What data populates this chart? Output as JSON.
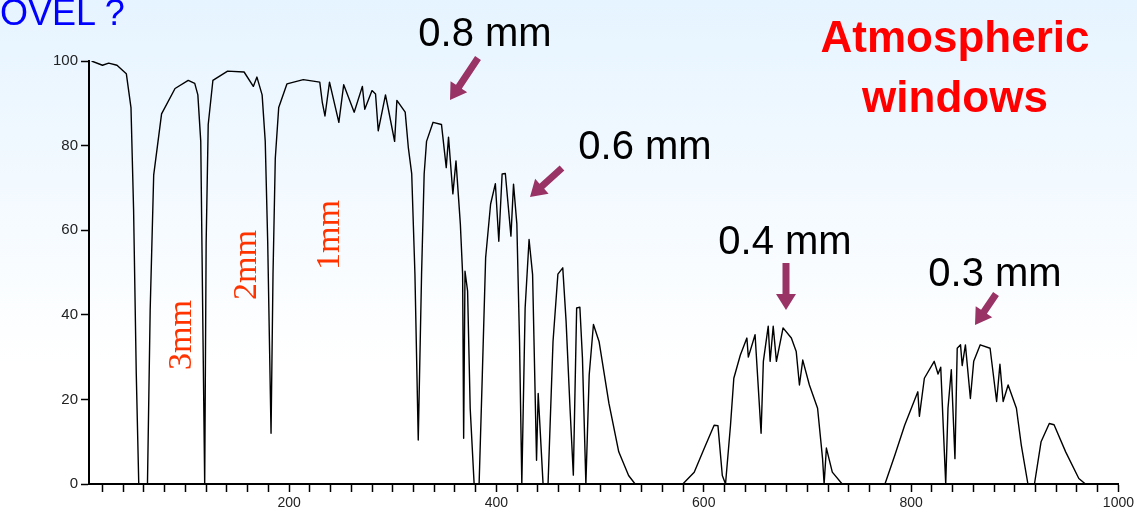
{
  "chart_data": {
    "type": "line",
    "title": "Atmospheric windows",
    "color": "#000000",
    "x": [
      9.5,
      20,
      26,
      34,
      43,
      47.5,
      50,
      52.6,
      55,
      63.4,
      66,
      69.4,
      77,
      90,
      102.7,
      109,
      112,
      114.8,
      117,
      118.6,
      120,
      122,
      126.5,
      140.7,
      156.6,
      165.5,
      169,
      174,
      177,
      179.4,
      182.6,
      184.5,
      186.7,
      190,
      198,
      213.7,
      229.6,
      232,
      234.6,
      239,
      248,
      252.7,
      262.8,
      270.7,
      273,
      280,
      283.4,
      286,
      293,
      296,
      301.8,
      304,
      312,
      315,
      318.3,
      321.4,
      324.6,
      327.8,
      330.3,
      332.6,
      338.9,
      347,
      351.6,
      353.8,
      358,
      361,
      365.2,
      367.4,
      368.4,
      369.7,
      372.2,
      374.7,
      378.5,
      383.3,
      386.4,
      389.6,
      394.4,
      399,
      402.3,
      405.5,
      408.6,
      414,
      416.5,
      419.7,
      422.3,
      424.5,
      427.7,
      431.5,
      434.9,
      438.7,
      440.3,
      445,
      449.8,
      454.6,
      459.3,
      464,
      467.2,
      471,
      474.2,
      477.4,
      480.5,
      483,
      486.3,
      489.5,
      493.6,
      499,
      508.5,
      518,
      527.5,
      533.8,
      579.8,
      590.8,
      600.4,
      610,
      613.7,
      617.9,
      621,
      625.8,
      629,
      635.3,
      641.6,
      643,
      649.5,
      655.3,
      657.5,
      662.2,
      664,
      667,
      670.1,
      676.5,
      684.5,
      689.2,
      692.3,
      695.5,
      701.9,
      709.8,
      714.6,
      716.1,
      718.3,
      724,
      733.5,
      774.8,
      784.3,
      793.8,
      806.5,
      808,
      812.8,
      822.3,
      826,
      828.6,
      833.4,
      835.6,
      838.8,
      842.3,
      844.5,
      847.7,
      849.3,
      852.4,
      857.2,
      860.4,
      866.7,
      876.2,
      882.5,
      885.7,
      888.8,
      893.6,
      901.6,
      906.3,
      912.7,
      919,
      925.4,
      933.3,
      937.9,
      949.1,
      961.8,
      968.2,
      999.5
    ],
    "values": [
      100,
      99,
      99.5,
      99,
      97,
      89,
      65,
      26,
      0,
      0,
      41,
      73,
      87.5,
      93.5,
      95.4,
      94.7,
      92,
      81,
      34,
      0,
      57,
      85,
      95.4,
      97.6,
      97.4,
      94,
      96.2,
      92,
      81,
      57,
      12,
      49.6,
      77,
      89,
      94.6,
      95.6,
      95,
      90.3,
      87,
      95,
      85.5,
      94.4,
      87.9,
      94,
      88.6,
      93,
      92.2,
      83.5,
      92,
      88.3,
      81,
      90.7,
      87.9,
      79.6,
      73.3,
      49.6,
      10.4,
      49.6,
      73.3,
      81,
      85.5,
      85,
      74.8,
      82,
      68.6,
      76.4,
      61.5,
      49.6,
      10.8,
      50.3,
      45.6,
      17.9,
      0,
      0,
      25.8,
      53.5,
      66.2,
      71,
      57.4,
      73.3,
      73.4,
      58.6,
      70.9,
      61.5,
      33.7,
      0,
      41.6,
      57.8,
      49.5,
      5.6,
      21.4,
      0,
      0,
      33.7,
      49.6,
      51.1,
      38.5,
      17.9,
      2.1,
      41.6,
      41.8,
      29.7,
      0,
      25.8,
      37.7,
      33.7,
      19.1,
      7.6,
      2,
      0,
      0,
      2.8,
      8.4,
      13.9,
      13.8,
      2,
      0,
      13.9,
      25,
      30.5,
      34.5,
      30,
      35.3,
      12,
      29,
      37.3,
      29,
      37.3,
      29,
      36.9,
      34.5,
      31.3,
      23.4,
      29.3,
      23.4,
      17.9,
      6,
      0,
      8.5,
      2.8,
      0,
      0,
      6.8,
      13.9,
      21.8,
      16,
      25,
      29,
      26,
      27.6,
      0,
      17.9,
      27,
      6,
      32.1,
      32.9,
      28,
      32.9,
      20.2,
      29,
      32.9,
      32.1,
      19.5,
      28.3,
      19.5,
      23.4,
      17.9,
      9.2,
      0,
      0,
      10,
      14.3,
      14,
      7.6,
      1.3,
      0,
      0
    ],
    "xlim": [
      7,
      1000
    ],
    "xticks": [
      {
        "value": 20,
        "label": null
      },
      {
        "value": 40,
        "label": null
      },
      {
        "value": 60,
        "label": null
      },
      {
        "value": 80,
        "label": null
      },
      {
        "value": 100,
        "label": null
      },
      {
        "value": 120,
        "label": null
      },
      {
        "value": 140,
        "label": null
      },
      {
        "value": 160,
        "label": null
      },
      {
        "value": 180,
        "label": null
      },
      200,
      {
        "value": 220,
        "label": null
      },
      {
        "value": 240,
        "label": null
      },
      {
        "value": 260,
        "label": null
      },
      {
        "value": 280,
        "label": null
      },
      {
        "value": 300,
        "label": null
      },
      {
        "value": 320,
        "label": null
      },
      {
        "value": 340,
        "label": null
      },
      {
        "value": 360,
        "label": null
      },
      {
        "value": 380,
        "label": null
      },
      400,
      {
        "value": 420,
        "label": null
      },
      {
        "value": 440,
        "label": null
      },
      {
        "value": 460,
        "label": null
      },
      {
        "value": 480,
        "label": null
      },
      {
        "value": 500,
        "label": null
      },
      {
        "value": 520,
        "label": null
      },
      {
        "value": 540,
        "label": null
      },
      {
        "value": 560,
        "label": null
      },
      {
        "value": 580,
        "label": null
      },
      600,
      {
        "value": 620,
        "label": null
      },
      {
        "value": 640,
        "label": null
      },
      {
        "value": 660,
        "label": null
      },
      {
        "value": 680,
        "label": null
      },
      {
        "value": 700,
        "label": null
      },
      {
        "value": 720,
        "label": null
      },
      {
        "value": 740,
        "label": null
      },
      {
        "value": 760,
        "label": null
      },
      {
        "value": 780,
        "label": null
      },
      800,
      {
        "value": 820,
        "label": null
      },
      {
        "value": 840,
        "label": null
      },
      {
        "value": 860,
        "label": null
      },
      {
        "value": 880,
        "label": null
      },
      {
        "value": 900,
        "label": null
      },
      {
        "value": 920,
        "label": null
      },
      {
        "value": 940,
        "label": null
      },
      {
        "value": 960,
        "label": null
      },
      {
        "value": 980,
        "label": null
      },
      1000
    ],
    "ylim": [
      0,
      100
    ],
    "yticks": [
      0,
      20,
      40,
      60,
      80,
      100
    ],
    "annotations": [
      "OVEL ?",
      "3mm",
      "2mm",
      "1mm",
      "0.8 mm",
      "0.6 mm",
      "0.4 mm",
      "0.3 mm"
    ]
  }
}
